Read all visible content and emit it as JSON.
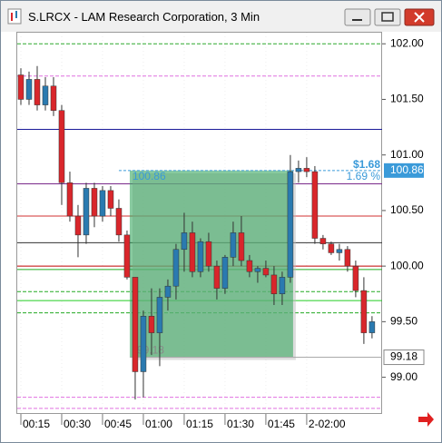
{
  "chart_data": {
    "type": "candlestick",
    "title": "S.LRCX - LAM Research Corporation, 3 Min",
    "x": [
      15,
      18,
      21,
      24,
      27,
      30,
      33,
      36,
      39,
      42,
      45,
      48,
      51,
      54,
      57,
      60,
      63,
      66,
      69,
      72,
      75,
      78,
      81,
      84,
      87,
      90,
      93,
      96,
      99,
      102,
      105,
      108,
      111,
      114,
      117,
      120,
      123,
      126,
      129,
      132,
      135,
      138,
      141,
      144
    ],
    "open": [
      101.72,
      101.5,
      101.68,
      101.45,
      101.62,
      101.4,
      100.75,
      100.45,
      100.28,
      100.7,
      100.45,
      100.68,
      100.52,
      100.28,
      99.9,
      99.05,
      99.55,
      99.4,
      99.72,
      99.82,
      100.15,
      100.3,
      99.95,
      100.22,
      100.0,
      99.8,
      100.08,
      100.3,
      100.05,
      99.95,
      99.98,
      99.92,
      99.75,
      99.9,
      100.85,
      100.88,
      100.85,
      100.25,
      100.2,
      100.12,
      100.15,
      100.0,
      99.78,
      99.4
    ],
    "high": [
      101.78,
      101.75,
      101.8,
      101.7,
      101.7,
      101.45,
      100.85,
      100.55,
      100.75,
      100.75,
      100.72,
      100.72,
      100.6,
      100.32,
      99.9,
      99.6,
      99.8,
      99.8,
      99.88,
      100.2,
      100.48,
      100.4,
      100.25,
      100.3,
      100.05,
      100.1,
      100.4,
      100.45,
      100.1,
      100.0,
      100.05,
      100.0,
      99.95,
      101.0,
      100.95,
      100.98,
      100.9,
      100.28,
      100.22,
      100.2,
      100.18,
      100.05,
      99.9,
      99.55
    ],
    "low": [
      101.45,
      101.45,
      101.4,
      101.4,
      101.35,
      100.55,
      100.4,
      100.08,
      100.2,
      100.35,
      100.4,
      100.45,
      100.22,
      99.88,
      98.8,
      98.82,
      99.2,
      99.1,
      99.6,
      99.7,
      99.95,
      99.9,
      99.9,
      99.95,
      99.7,
      99.75,
      100.0,
      100.0,
      99.9,
      99.85,
      99.9,
      99.65,
      99.65,
      99.85,
      100.75,
      100.8,
      100.2,
      100.15,
      100.1,
      100.05,
      99.95,
      99.72,
      99.3,
      99.35
    ],
    "close": [
      101.5,
      101.68,
      101.45,
      101.62,
      101.4,
      100.75,
      100.45,
      100.28,
      100.7,
      100.45,
      100.68,
      100.52,
      100.28,
      99.9,
      99.05,
      99.55,
      99.4,
      99.72,
      99.82,
      100.15,
      100.3,
      99.95,
      100.22,
      100.0,
      99.8,
      100.08,
      100.3,
      100.05,
      99.95,
      99.98,
      99.92,
      99.75,
      99.9,
      100.85,
      100.88,
      100.85,
      100.25,
      100.2,
      100.12,
      100.15,
      100.0,
      99.78,
      99.4,
      99.5
    ],
    "up_color": "#2a7ab0",
    "down_color": "#d9262b",
    "xlim": [
      13.67,
      147.7
    ],
    "ylim": [
      98.67,
      102.1
    ],
    "xticks": [
      {
        "value": 15,
        "label": "00:15"
      },
      {
        "value": 30,
        "label": "00:30"
      },
      {
        "value": 45,
        "label": "00:45"
      },
      {
        "value": 60,
        "label": "01:00"
      },
      {
        "value": 75,
        "label": "01:15"
      },
      {
        "value": 90,
        "label": "01:30"
      },
      {
        "value": 105,
        "label": "01:45"
      },
      {
        "value": 120,
        "label": "2-02:00"
      }
    ],
    "yticks": [
      {
        "value": 99,
        "label": "99.00"
      },
      {
        "value": 99.5,
        "label": "99.50"
      },
      {
        "value": 100,
        "label": "100.00"
      },
      {
        "value": 100.5,
        "label": "100.50"
      },
      {
        "value": 101,
        "label": "101.00"
      },
      {
        "value": 101.5,
        "label": "101.50"
      },
      {
        "value": 102,
        "label": "102.00"
      }
    ],
    "levels": [
      {
        "value": 102.0,
        "color": "#2ea82e",
        "dashed": true
      },
      {
        "value": 101.71,
        "color": "#e070e0",
        "dashed": true
      },
      {
        "value": 101.23,
        "color": "#1a1a9a",
        "dashed": false
      },
      {
        "value": 100.74,
        "color": "#7a2a8a",
        "dashed": false
      },
      {
        "value": 100.45,
        "color": "#d03030",
        "dashed": false
      },
      {
        "value": 100.21,
        "color": "#333333",
        "dashed": false
      },
      {
        "value": 100.0,
        "color": "#c00000",
        "dashed": false
      },
      {
        "value": 99.97,
        "color": "#22aa22",
        "dashed": false
      },
      {
        "value": 99.77,
        "color": "#22aa22",
        "dashed": true
      },
      {
        "value": 99.69,
        "color": "#22cc22",
        "dashed": false
      },
      {
        "value": 99.58,
        "color": "#22aa22",
        "dashed": true
      },
      {
        "value": 98.82,
        "color": "#e070e0",
        "dashed": true
      },
      {
        "value": 98.72,
        "color": "#e070e0",
        "dashed": true
      }
    ],
    "measure": {
      "low": 99.18,
      "high": 100.86,
      "start": 55,
      "end": 115,
      "change": {
        "value": 1.68,
        "label": "$1.68"
      },
      "change_pct": {
        "value": 1.69,
        "label": "1.69 %"
      },
      "color": "#3aa860",
      "line_color": "#3a9ad9"
    }
  }
}
